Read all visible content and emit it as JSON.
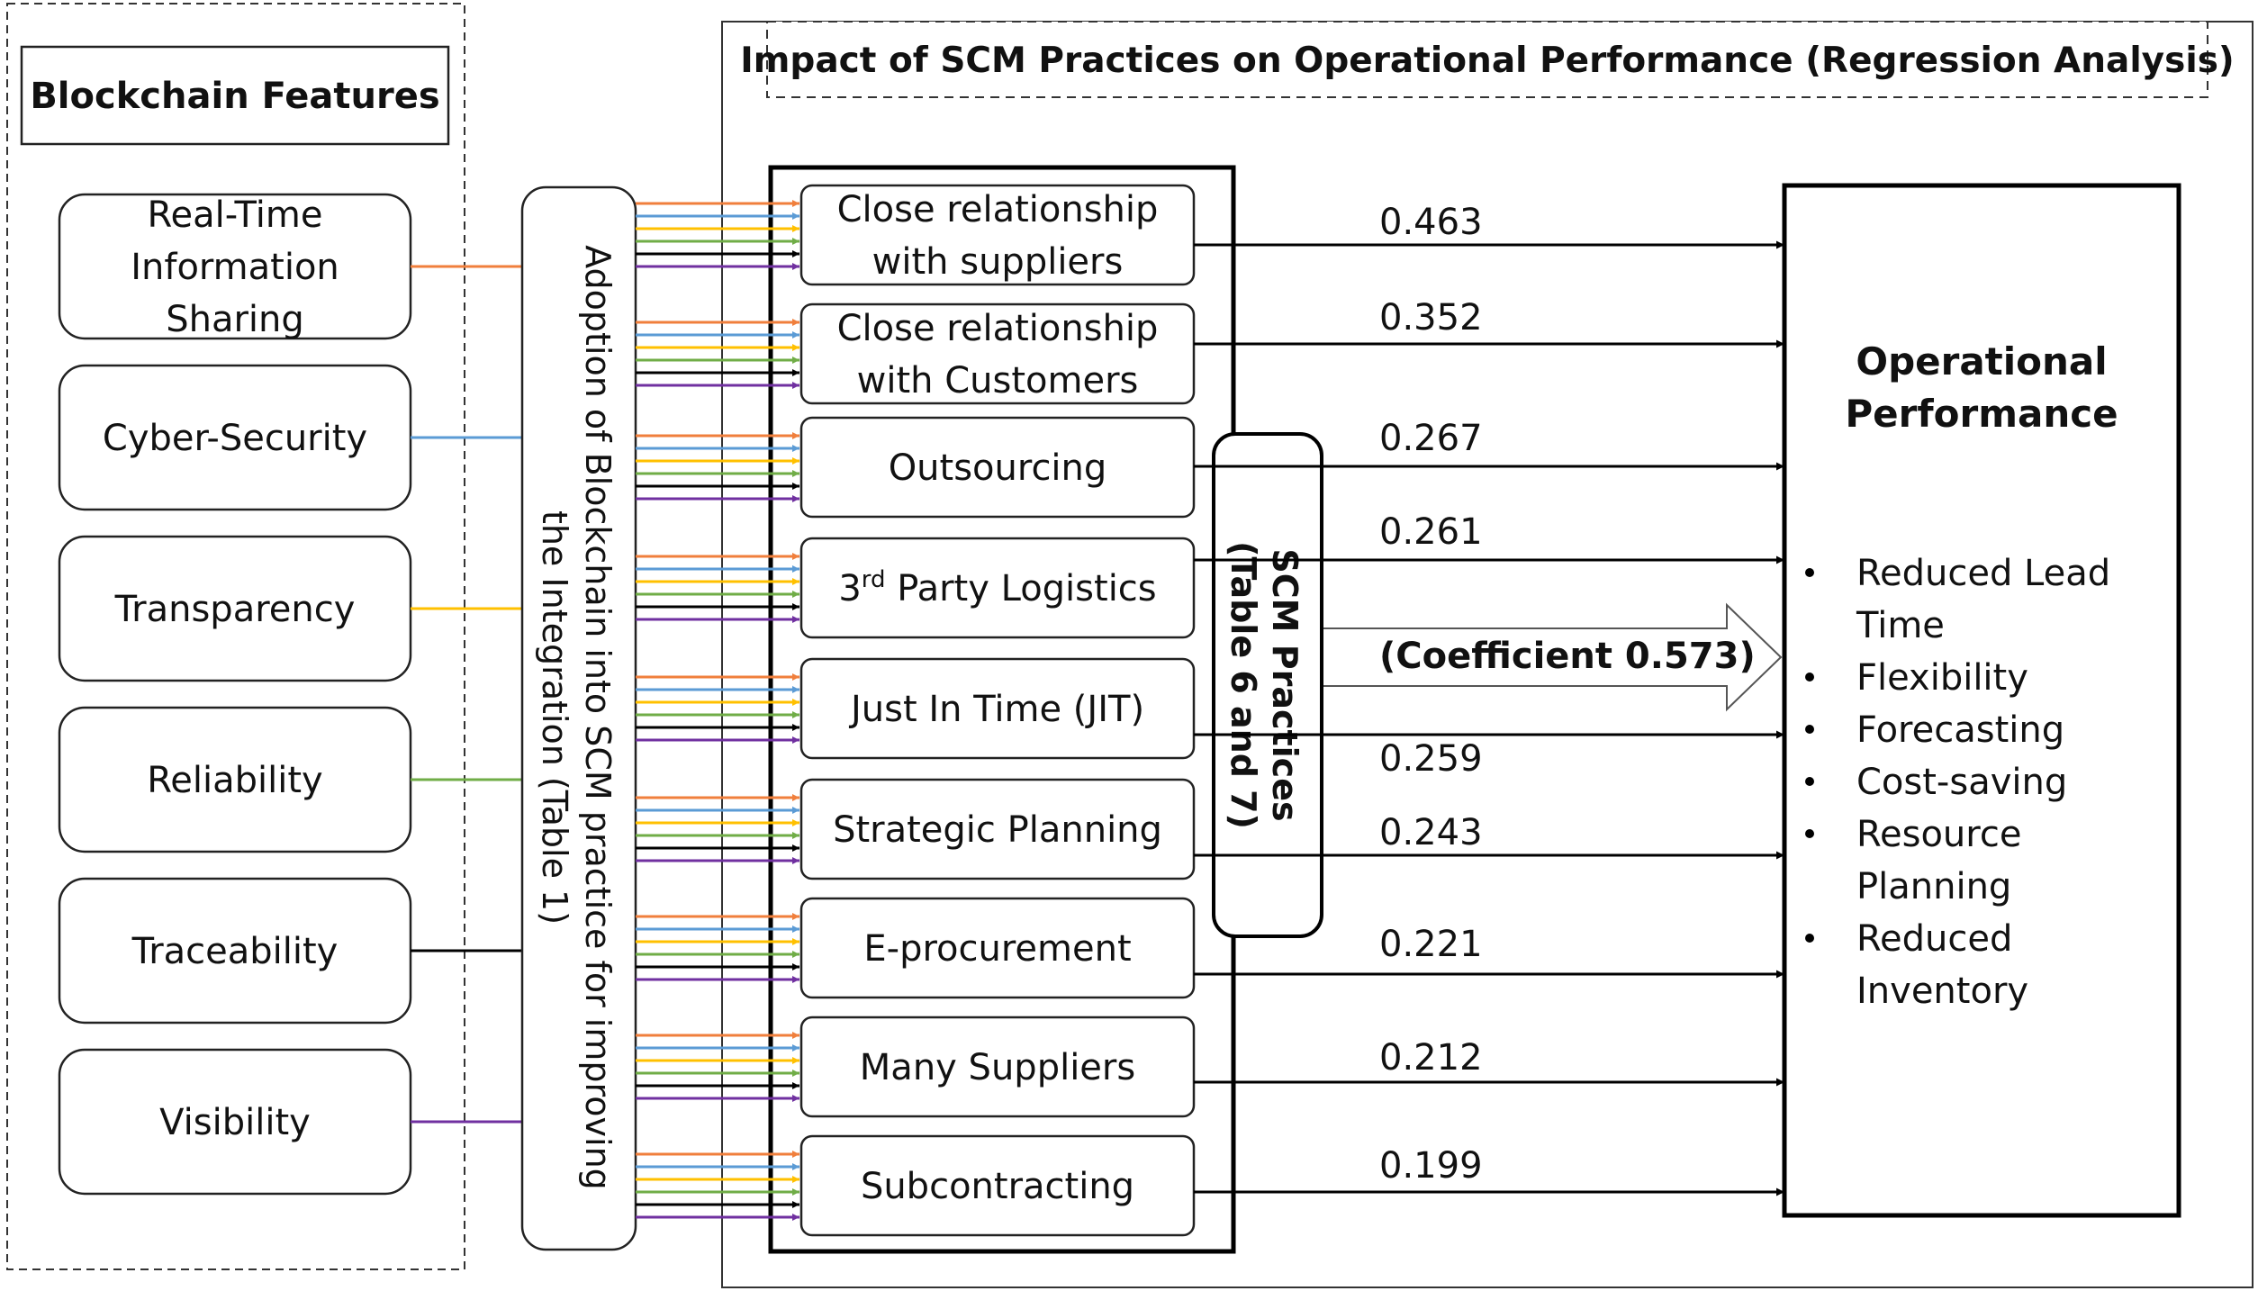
{
  "features_panel": {
    "title": "Blockchain Features",
    "features": [
      {
        "label_lines": [
          "Real-Time",
          "Information",
          "Sharing"
        ],
        "color": "#f07f3c"
      },
      {
        "label_lines": [
          "Cyber-Security"
        ],
        "color": "#5b9bd5"
      },
      {
        "label_lines": [
          "Transparency"
        ],
        "color": "#ffc000"
      },
      {
        "label_lines": [
          "Reliability"
        ],
        "color": "#70ad47"
      },
      {
        "label_lines": [
          "Traceability"
        ],
        "color": "#000000"
      },
      {
        "label_lines": [
          "Visibility"
        ],
        "color": "#7030a0"
      }
    ]
  },
  "adoption_box": {
    "lines": [
      "Adoption of Blockchain into SCM practice for improving",
      "the Integration (Table 1)"
    ]
  },
  "analysis_panel": {
    "title": "Impact of SCM Practices on Operational Performance (Regression Analysis)"
  },
  "practices": [
    {
      "label_lines": [
        "Close relationship",
        "with suppliers"
      ],
      "coefficient": "0.463"
    },
    {
      "label_lines": [
        "Close relationship",
        "with Customers"
      ],
      "coefficient": "0.352"
    },
    {
      "label_lines": [
        "Outsourcing"
      ],
      "coefficient": "0.267"
    },
    {
      "label_lines": [
        "3rd Party Logistics"
      ],
      "coefficient": "0.261",
      "superscript": "rd"
    },
    {
      "label_lines": [
        "Just In Time (JIT)"
      ],
      "coefficient": "0.259"
    },
    {
      "label_lines": [
        "Strategic Planning"
      ],
      "coefficient": "0.243"
    },
    {
      "label_lines": [
        "E-procurement"
      ],
      "coefficient": "0.221"
    },
    {
      "label_lines": [
        "Many Suppliers"
      ],
      "coefficient": "0.212"
    },
    {
      "label_lines": [
        "Subcontracting"
      ],
      "coefficient": "0.199"
    }
  ],
  "scm_box": {
    "lines": [
      "SCM Practices",
      "(Table 6 and 7)"
    ]
  },
  "overall_coefficient": "(Coefficient  0.573)",
  "operational_performance": {
    "title_lines": [
      "Operational",
      "Performance"
    ],
    "bullet_items": [
      [
        "Reduced Lead",
        "Time"
      ],
      [
        "Flexibility"
      ],
      [
        "Forecasting"
      ],
      [
        "Cost-saving"
      ],
      [
        "Resource",
        "Planning"
      ],
      [
        "Reduced",
        "Inventory"
      ]
    ]
  }
}
